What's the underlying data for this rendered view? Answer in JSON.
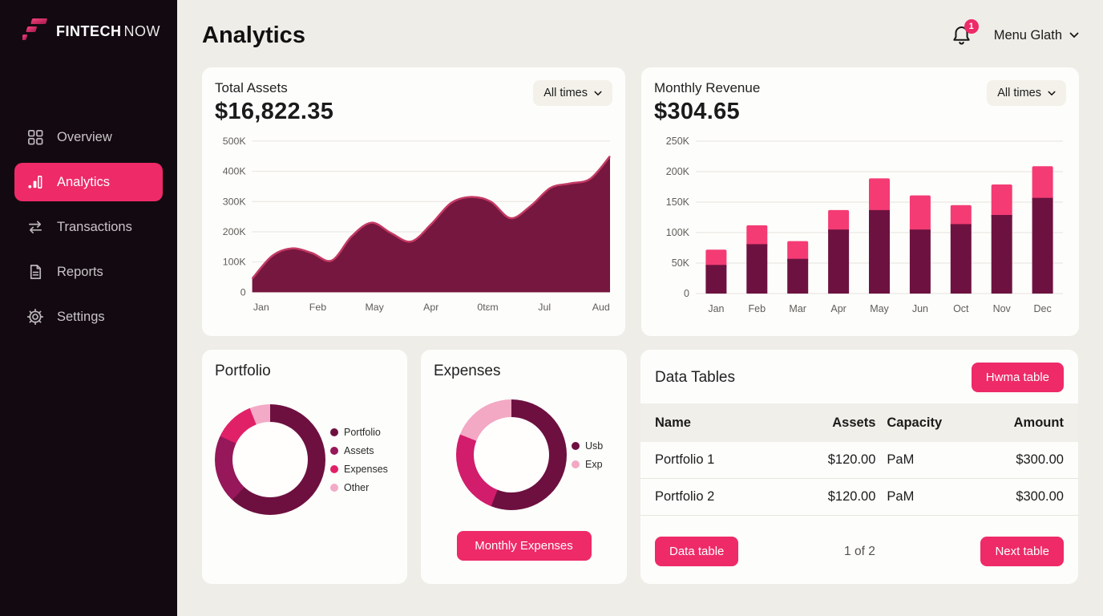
{
  "brand": {
    "name_bold": "FINTECH",
    "name_light": "NOW"
  },
  "sidebar": {
    "items": [
      {
        "label": "Overview",
        "icon": "grid-icon",
        "active": false
      },
      {
        "label": "Analytics",
        "icon": "bar-chart-icon",
        "active": true
      },
      {
        "label": "Transactions",
        "icon": "swap-arrows-icon",
        "active": false
      },
      {
        "label": "Reports",
        "icon": "document-icon",
        "active": false
      },
      {
        "label": "Settings",
        "icon": "gear-icon",
        "active": false
      }
    ]
  },
  "header": {
    "title": "Analytics",
    "notification_count": "1",
    "user_menu_label": "Menu Glath"
  },
  "colors": {
    "accent_pink": "#ee2a68",
    "dark_maroon": "#6d1240",
    "area_fill": "#76173f",
    "area_stroke": "#c43a64",
    "bar_pink": "#f43b74",
    "sidebar_bg": "#130911",
    "page_bg": "#efede8"
  },
  "cards": {
    "total_assets": {
      "title": "Total Assets",
      "value": "$16,822.35",
      "filter_label": "All times"
    },
    "monthly_revenue": {
      "title": "Monthly Revenue",
      "value": "$304.65",
      "filter_label": "All times"
    },
    "portfolio": {
      "title": "Portfolio"
    },
    "expenses": {
      "title": "Expenses",
      "button_label": "Monthly Expenses"
    },
    "data_tables": {
      "title": "Data Tables",
      "action_button_label": "Hwma table",
      "columns": [
        "Name",
        "Assets",
        "Capacity",
        "Amount"
      ],
      "rows": [
        [
          "Portfolio 1",
          "$120.00",
          "PaM",
          "$300.00"
        ],
        [
          "Portfolio 2",
          "$120.00",
          "PaM",
          "$300.00"
        ]
      ],
      "footer": {
        "prev_label": "Data table",
        "page_indicator": "1 of 2",
        "next_label": "Next table"
      }
    }
  },
  "chart_data": [
    {
      "id": "total-assets-area",
      "type": "area",
      "title": "Total Assets",
      "categories": [
        "Jan",
        "Feb",
        "May",
        "Apr",
        "0tɛm",
        "Jul",
        "Aud"
      ],
      "values_k": [
        45,
        120,
        145,
        130,
        105,
        185,
        230,
        195,
        168,
        225,
        295,
        315,
        300,
        245,
        285,
        345,
        360,
        375,
        450
      ],
      "ylabel": "",
      "xlabel": "",
      "ylim": [
        0,
        500
      ],
      "grid": true,
      "yticks": [
        {
          "label": "500K",
          "value": 500
        },
        {
          "label": "400K",
          "value": 400
        },
        {
          "label": "300K",
          "value": 300
        },
        {
          "label": "200K",
          "value": 200
        },
        {
          "label": "100K",
          "value": 100
        },
        {
          "label": "0",
          "value": 0
        }
      ],
      "fill_color": "#76173f",
      "stroke_color": "#c43a64"
    },
    {
      "id": "monthly-revenue-bars",
      "type": "bar",
      "stacked": true,
      "title": "Monthly Revenue",
      "categories": [
        "Jan",
        "Feb",
        "Mar",
        "Apr",
        "May",
        "Jun",
        "Oct",
        "Nov",
        "Dec"
      ],
      "series": [
        {
          "name": "base",
          "color": "#6d1240",
          "values_k": [
            47,
            81,
            57,
            105,
            137,
            105,
            114,
            129,
            157
          ]
        },
        {
          "name": "top",
          "color": "#f43b74",
          "values_k": [
            25,
            31,
            29,
            32,
            52,
            56,
            31,
            50,
            52
          ]
        }
      ],
      "ylim": [
        0,
        250
      ],
      "grid": true,
      "yticks": [
        {
          "label": "250K",
          "value": 250
        },
        {
          "label": "200K",
          "value": 200
        },
        {
          "label": "150K",
          "value": 150
        },
        {
          "label": "100K",
          "value": 100
        },
        {
          "label": "50K",
          "value": 50
        },
        {
          "label": "0",
          "value": 0
        }
      ]
    },
    {
      "id": "portfolio-donut",
      "type": "pie",
      "donut": true,
      "title": "Portfolio",
      "legend_position": "right",
      "slices": [
        {
          "label": "Portfolio",
          "value": 62,
          "color": "#6d1040"
        },
        {
          "label": "Assets",
          "value": 20,
          "color": "#96175a"
        },
        {
          "label": "Expenses",
          "value": 12,
          "color": "#e02168"
        },
        {
          "label": "Other",
          "value": 6,
          "color": "#f3aac6"
        }
      ]
    },
    {
      "id": "expenses-donut",
      "type": "pie",
      "donut": true,
      "title": "Expenses",
      "legend_position": "right",
      "slices": [
        {
          "label": "Usb",
          "value": 56,
          "color": "#6d1040"
        },
        {
          "label": "",
          "value": 25,
          "color": "#d11d6b"
        },
        {
          "label": "Exp",
          "value": 19,
          "color": "#f3a8c4"
        }
      ],
      "legend": [
        {
          "label": "Usb",
          "color": "#6d1040"
        },
        {
          "label": "Exp",
          "color": "#f3a8c4"
        }
      ]
    }
  ]
}
